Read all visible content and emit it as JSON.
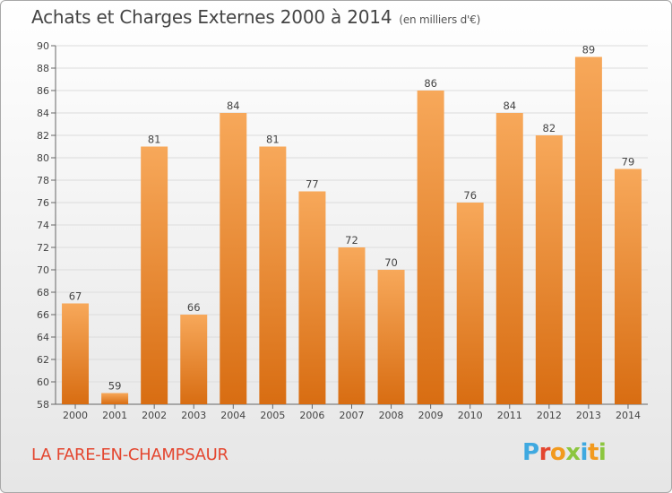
{
  "header": {
    "title": "Achats et Charges Externes 2000 à 2014",
    "unit": "(en milliers d'€)"
  },
  "footer": {
    "commune": "LA FARE-EN-CHAMPSAUR",
    "logo_letters": [
      "P",
      "r",
      "o",
      "x",
      "i",
      "t",
      "i"
    ],
    "logo_colors": [
      "#3fa9e0",
      "#e4462f",
      "#f29a1e",
      "#8cc63f",
      "#3fa9e0",
      "#f29a1e",
      "#8cc63f"
    ]
  },
  "colors": {
    "bar_top": "#f7a85a",
    "bar_bottom": "#d86d12",
    "grid": "#dcdcdc",
    "title": "#444444",
    "commune": "#e4462f"
  },
  "chart_data": {
    "type": "bar",
    "title": "Achats et Charges Externes 2000 à 2014",
    "subtitle": "(en milliers d'€)",
    "xlabel": "",
    "ylabel": "",
    "categories": [
      "2000",
      "2001",
      "2002",
      "2003",
      "2004",
      "2005",
      "2006",
      "2007",
      "2008",
      "2009",
      "2010",
      "2011",
      "2012",
      "2013",
      "2014"
    ],
    "values": [
      67,
      59,
      81,
      66,
      84,
      81,
      77,
      72,
      70,
      86,
      76,
      84,
      82,
      89,
      79
    ],
    "ylim": [
      58,
      90
    ],
    "yticks": [
      58,
      60,
      62,
      64,
      66,
      68,
      70,
      72,
      74,
      76,
      78,
      80,
      82,
      84,
      86,
      88,
      90
    ],
    "grid": true,
    "data_labels": true
  }
}
